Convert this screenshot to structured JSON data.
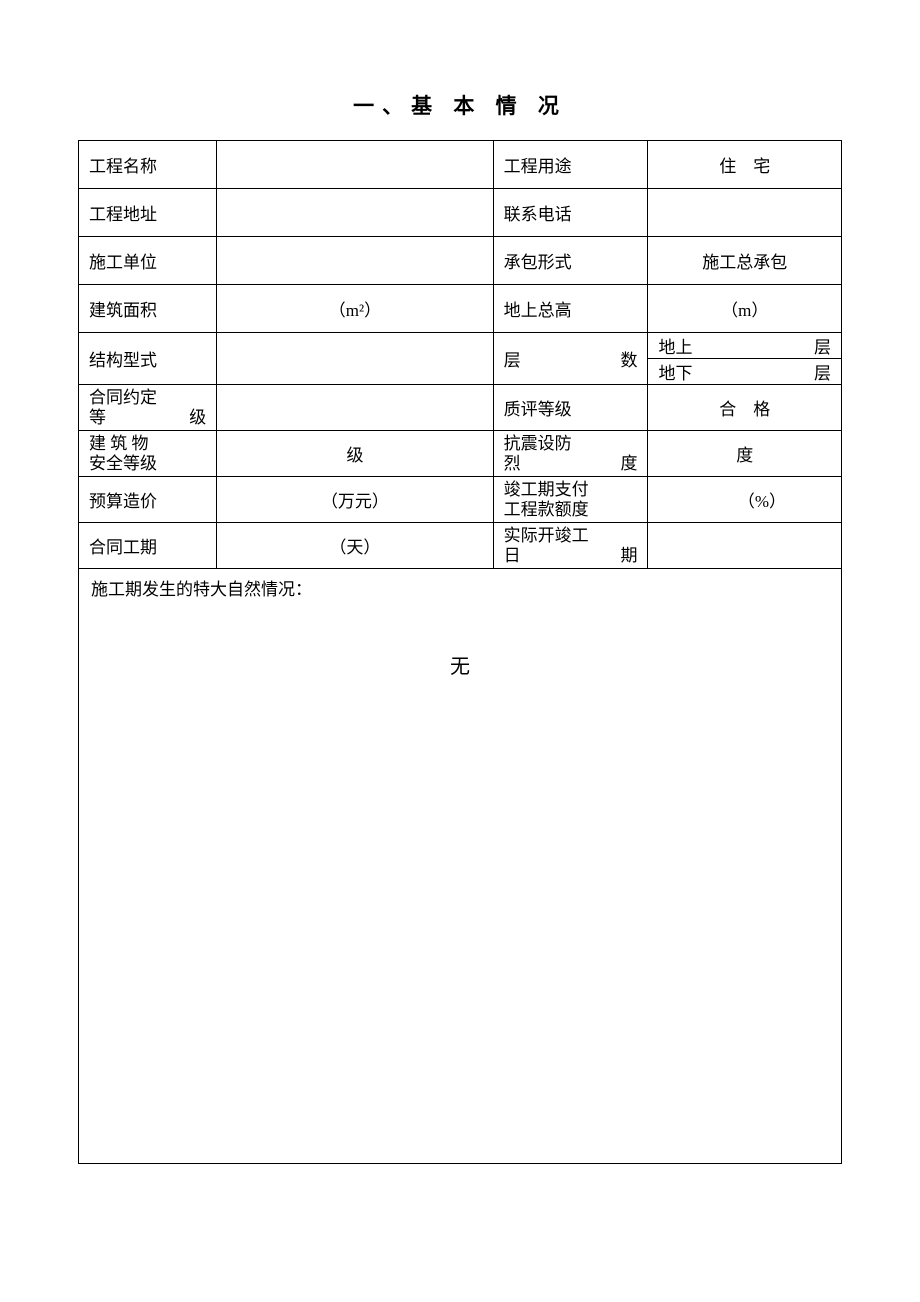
{
  "title": "一、基 本 情 况",
  "rows": {
    "r1": {
      "l1": "工程名称",
      "v1": "",
      "l2": "工程用途",
      "v2": "住　宅"
    },
    "r2": {
      "l1": "工程地址",
      "v1": "",
      "l2": "联系电话",
      "v2": ""
    },
    "r3": {
      "l1": "施工单位",
      "v1": "",
      "l2": "承包形式",
      "v2": "施工总承包"
    },
    "r4": {
      "l1": "建筑面积",
      "v1": "（m²）",
      "l2": "地上总高",
      "v2": "（m）"
    },
    "r5": {
      "l1": "结构型式",
      "v1": "",
      "l2a": "层",
      "l2b": "数",
      "v2a_left": "地上",
      "v2a_right": "层",
      "v2b_left": "地下",
      "v2b_right": "层"
    },
    "r6": {
      "l1_line1": "合同约定",
      "l1_line2a": "等",
      "l1_line2b": "级",
      "v1": "",
      "l2": "质评等级",
      "v2": "合　格"
    },
    "r7": {
      "l1_line1": "建 筑 物",
      "l1_line2": "安全等级",
      "v1": "级",
      "l2_line1": "抗震设防",
      "l2_line2a": "烈",
      "l2_line2b": "度",
      "v2": "度"
    },
    "r8": {
      "l1": "预算造价",
      "v1": "（万元）",
      "l2_line1": "竣工期支付",
      "l2_line2": "工程款额度",
      "v2": "（%）"
    },
    "r9": {
      "l1": "合同工期",
      "v1": "（天）",
      "l2_line1": "实际开竣工",
      "l2_line2a": "日",
      "l2_line2b": "期",
      "v2": ""
    }
  },
  "notes": {
    "title": "施工期发生的特大自然情况：",
    "content": "无"
  },
  "style": {
    "fontFamily": "SimSun",
    "borderColor": "#000000",
    "backgroundColor": "#ffffff",
    "fontSize": 17,
    "titleFontSize": 21
  }
}
